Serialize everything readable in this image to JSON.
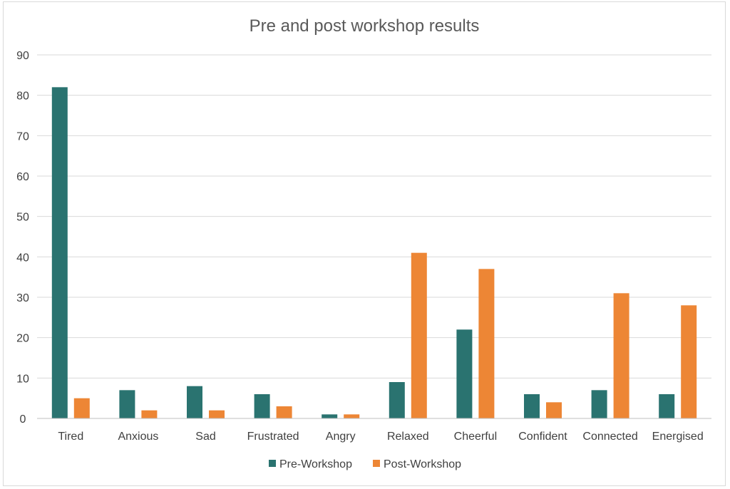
{
  "chart_data": {
    "type": "bar",
    "title": "Pre and post workshop results",
    "xlabel": "",
    "ylabel": "",
    "categories": [
      "Tired",
      "Anxious",
      "Sad",
      "Frustrated",
      "Angry",
      "Relaxed",
      "Cheerful",
      "Confident",
      "Connected",
      "Energised"
    ],
    "series": [
      {
        "name": "Pre-Workshop",
        "color": "#2a7370",
        "values": [
          82,
          7,
          8,
          6,
          1,
          9,
          22,
          6,
          7,
          6
        ]
      },
      {
        "name": "Post-Workshop",
        "color": "#ed8635",
        "values": [
          5,
          2,
          2,
          3,
          1,
          41,
          37,
          4,
          31,
          28
        ]
      }
    ],
    "ylim": [
      0,
      90
    ],
    "yticks": [
      "0",
      "10",
      "20",
      "30",
      "40",
      "50",
      "60",
      "70",
      "80",
      "90"
    ],
    "grid": true,
    "legend_position": "bottom"
  }
}
